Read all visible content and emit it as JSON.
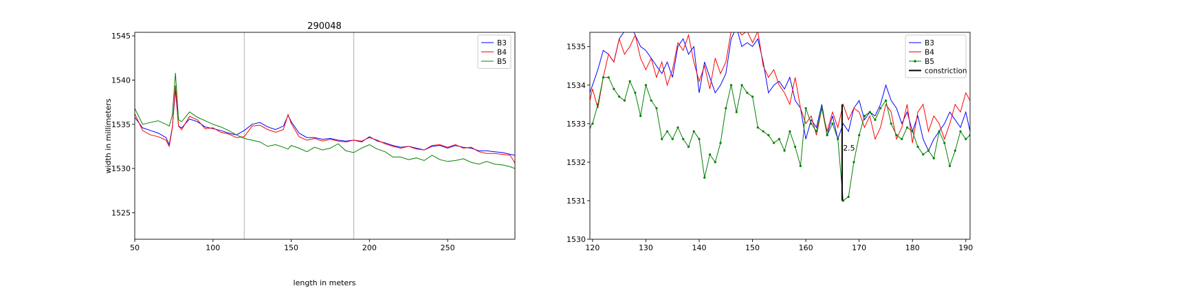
{
  "chart_data": [
    {
      "type": "line",
      "title": "290048",
      "xlabel": "length in meters",
      "ylabel": "width in millimeters",
      "xlim": [
        50,
        293
      ],
      "ylim": [
        1522,
        1545.4
      ],
      "xticks": [
        50,
        100,
        150,
        200,
        250
      ],
      "yticks": [
        1525,
        1530,
        1535,
        1540,
        1545
      ],
      "vlines": [
        120,
        190
      ],
      "grid": false,
      "legend_position": "top-right",
      "series": [
        {
          "name": "B3",
          "color": "#0000ff",
          "x": [
            50,
            55,
            60,
            65,
            70,
            72,
            74,
            76,
            78,
            80,
            85,
            90,
            95,
            100,
            105,
            110,
            115,
            120,
            125,
            130,
            135,
            140,
            145,
            148,
            150,
            155,
            160,
            165,
            170,
            175,
            180,
            185,
            190,
            195,
            200,
            205,
            210,
            215,
            220,
            225,
            230,
            235,
            240,
            245,
            250,
            255,
            260,
            265,
            270,
            275,
            280,
            285,
            290,
            293
          ],
          "y": [
            1535.8,
            1534.6,
            1534.3,
            1534.0,
            1533.5,
            1532.7,
            1534.6,
            1538.9,
            1534.8,
            1534.6,
            1535.6,
            1535.3,
            1534.7,
            1534.5,
            1534.3,
            1534.0,
            1533.8,
            1534.3,
            1535.0,
            1535.2,
            1534.7,
            1534.4,
            1534.8,
            1536.0,
            1535.3,
            1534.0,
            1533.5,
            1533.5,
            1533.3,
            1533.4,
            1533.2,
            1533.1,
            1533.2,
            1533.0,
            1533.6,
            1533.1,
            1532.9,
            1532.6,
            1532.4,
            1532.5,
            1532.3,
            1532.1,
            1532.5,
            1532.6,
            1532.3,
            1532.6,
            1532.4,
            1532.3,
            1532.0,
            1532.0,
            1531.9,
            1531.8,
            1531.6,
            1531.5
          ]
        },
        {
          "name": "B4",
          "color": "#ff0000",
          "x": [
            50,
            55,
            60,
            65,
            70,
            72,
            74,
            76,
            78,
            80,
            85,
            90,
            95,
            100,
            105,
            110,
            115,
            120,
            125,
            130,
            135,
            140,
            145,
            148,
            150,
            155,
            160,
            165,
            170,
            175,
            180,
            185,
            190,
            195,
            200,
            205,
            210,
            215,
            220,
            225,
            230,
            235,
            240,
            245,
            250,
            255,
            260,
            265,
            270,
            275,
            280,
            285,
            290,
            293
          ],
          "y": [
            1536.2,
            1534.3,
            1533.8,
            1533.6,
            1533.2,
            1532.5,
            1534.5,
            1539.4,
            1534.8,
            1534.4,
            1535.9,
            1535.5,
            1534.5,
            1534.6,
            1534.1,
            1533.9,
            1533.5,
            1533.6,
            1534.8,
            1534.9,
            1534.4,
            1534.1,
            1534.4,
            1536.1,
            1535.1,
            1533.6,
            1533.2,
            1533.4,
            1533.1,
            1533.3,
            1533.1,
            1533.0,
            1533.2,
            1533.1,
            1533.5,
            1533.2,
            1532.8,
            1532.5,
            1532.3,
            1532.5,
            1532.2,
            1532.1,
            1532.6,
            1532.7,
            1532.4,
            1532.7,
            1532.3,
            1532.4,
            1531.9,
            1531.7,
            1531.7,
            1531.6,
            1531.5,
            1530.6
          ]
        },
        {
          "name": "B5",
          "color": "#008000",
          "x": [
            50,
            55,
            60,
            65,
            70,
            72,
            74,
            76,
            78,
            80,
            85,
            90,
            95,
            100,
            105,
            110,
            115,
            120,
            125,
            130,
            135,
            140,
            145,
            148,
            150,
            155,
            160,
            165,
            170,
            175,
            180,
            185,
            190,
            195,
            200,
            205,
            210,
            215,
            220,
            225,
            230,
            235,
            240,
            245,
            250,
            255,
            260,
            265,
            270,
            275,
            280,
            285,
            290,
            293
          ],
          "y": [
            1536.8,
            1535.0,
            1535.2,
            1535.4,
            1535.0,
            1534.8,
            1536.0,
            1540.8,
            1535.5,
            1535.3,
            1536.4,
            1535.8,
            1535.4,
            1535.0,
            1534.7,
            1534.3,
            1533.8,
            1533.4,
            1533.2,
            1533.0,
            1532.5,
            1532.7,
            1532.4,
            1532.2,
            1532.6,
            1532.3,
            1531.9,
            1532.4,
            1532.1,
            1532.3,
            1532.8,
            1532.0,
            1531.8,
            1532.3,
            1532.7,
            1532.2,
            1531.9,
            1531.3,
            1531.3,
            1531.0,
            1531.2,
            1530.9,
            1531.5,
            1531.0,
            1530.8,
            1530.9,
            1531.1,
            1530.7,
            1530.5,
            1530.8,
            1530.5,
            1530.4,
            1530.2,
            1530.0
          ]
        }
      ]
    },
    {
      "type": "line",
      "title": "",
      "xlabel": "",
      "ylabel": "",
      "xlim": [
        119.5,
        190.8
      ],
      "ylim": [
        1530,
        1535.37
      ],
      "xticks": [
        120,
        130,
        140,
        150,
        160,
        170,
        180,
        190
      ],
      "yticks": [
        1530,
        1531,
        1532,
        1533,
        1534,
        1535
      ],
      "grid": false,
      "legend_position": "top-right",
      "series": [
        {
          "name": "B3",
          "color": "#0000ff",
          "x": [
            119.5,
            120,
            121,
            122,
            123,
            124,
            125,
            126,
            127,
            128,
            129,
            130,
            131,
            132,
            133,
            134,
            135,
            136,
            137,
            138,
            139,
            140,
            141,
            142,
            143,
            144,
            145,
            146,
            147,
            148,
            149,
            150,
            151,
            152,
            153,
            154,
            155,
            156,
            157,
            158,
            159,
            160,
            161,
            162,
            163,
            164,
            165,
            166,
            167,
            168,
            169,
            170,
            171,
            172,
            173,
            174,
            175,
            176,
            177,
            178,
            179,
            180,
            181,
            182,
            183,
            184,
            185,
            186,
            187,
            188,
            189,
            190,
            190.8
          ],
          "y": [
            1533.8,
            1534.0,
            1534.4,
            1534.9,
            1534.8,
            1534.6,
            1535.2,
            1535.4,
            1535.6,
            1535.3,
            1535.0,
            1534.9,
            1534.7,
            1534.5,
            1534.3,
            1534.6,
            1534.2,
            1535.0,
            1535.2,
            1534.8,
            1535.0,
            1533.8,
            1534.6,
            1534.2,
            1533.8,
            1534.0,
            1534.3,
            1535.2,
            1535.5,
            1535.0,
            1535.1,
            1535.0,
            1535.2,
            1534.6,
            1533.8,
            1534.0,
            1534.1,
            1533.9,
            1534.2,
            1533.6,
            1533.4,
            1532.6,
            1533.1,
            1532.9,
            1533.5,
            1532.7,
            1533.2,
            1532.6,
            1533.0,
            1532.8,
            1533.4,
            1533.6,
            1533.1,
            1533.3,
            1533.2,
            1533.5,
            1534.0,
            1533.6,
            1533.4,
            1533.0,
            1533.3,
            1532.8,
            1533.2,
            1532.6,
            1532.3,
            1532.6,
            1532.8,
            1533.0,
            1533.3,
            1533.1,
            1532.9,
            1533.3,
            1532.8
          ]
        },
        {
          "name": "B4",
          "color": "#ff0000",
          "x": [
            119.5,
            120,
            121,
            122,
            123,
            124,
            125,
            126,
            127,
            128,
            129,
            130,
            131,
            132,
            133,
            134,
            135,
            136,
            137,
            138,
            139,
            140,
            141,
            142,
            143,
            144,
            145,
            146,
            147,
            148,
            149,
            150,
            151,
            152,
            153,
            154,
            155,
            156,
            157,
            158,
            159,
            160,
            161,
            162,
            163,
            164,
            165,
            166,
            167,
            168,
            169,
            170,
            171,
            172,
            173,
            174,
            175,
            176,
            177,
            178,
            179,
            180,
            181,
            182,
            183,
            184,
            185,
            186,
            187,
            188,
            189,
            190,
            190.8
          ],
          "y": [
            1533.6,
            1533.9,
            1533.4,
            1534.2,
            1534.8,
            1534.6,
            1535.2,
            1534.8,
            1535.0,
            1535.3,
            1534.7,
            1534.4,
            1534.7,
            1534.2,
            1534.6,
            1534.0,
            1534.4,
            1535.1,
            1534.9,
            1535.3,
            1534.6,
            1534.1,
            1534.5,
            1533.9,
            1534.7,
            1534.3,
            1534.6,
            1535.4,
            1535.5,
            1535.3,
            1535.4,
            1535.1,
            1535.4,
            1534.5,
            1534.2,
            1534.4,
            1534.0,
            1533.8,
            1533.5,
            1534.2,
            1533.4,
            1533.0,
            1533.2,
            1532.7,
            1533.4,
            1532.8,
            1533.3,
            1532.9,
            1533.5,
            1533.1,
            1533.4,
            1533.3,
            1532.9,
            1533.2,
            1532.6,
            1532.9,
            1533.5,
            1533.3,
            1532.6,
            1532.9,
            1533.5,
            1532.5,
            1533.3,
            1533.5,
            1532.8,
            1533.2,
            1533.0,
            1532.6,
            1533.0,
            1533.5,
            1533.3,
            1533.8,
            1533.6
          ]
        },
        {
          "name": "B5",
          "color": "#008000",
          "markers": true,
          "x": [
            119.5,
            120,
            121,
            122,
            123,
            124,
            125,
            126,
            127,
            128,
            129,
            130,
            131,
            132,
            133,
            134,
            135,
            136,
            137,
            138,
            139,
            140,
            141,
            142,
            143,
            144,
            145,
            146,
            147,
            148,
            149,
            150,
            151,
            152,
            153,
            154,
            155,
            156,
            157,
            158,
            159,
            160,
            161,
            162,
            163,
            164,
            165,
            166,
            167,
            168,
            169,
            170,
            171,
            172,
            173,
            174,
            175,
            176,
            177,
            178,
            179,
            180,
            181,
            182,
            183,
            184,
            185,
            186,
            187,
            188,
            189,
            190,
            190.8
          ],
          "y": [
            1532.9,
            1533.0,
            1533.5,
            1534.2,
            1534.2,
            1533.9,
            1533.7,
            1533.6,
            1534.1,
            1533.8,
            1533.2,
            1534.0,
            1533.6,
            1533.4,
            1532.6,
            1532.8,
            1532.6,
            1532.9,
            1532.6,
            1532.4,
            1532.8,
            1532.6,
            1531.6,
            1532.2,
            1532.0,
            1532.5,
            1533.4,
            1534.0,
            1533.3,
            1534.0,
            1533.8,
            1533.7,
            1532.9,
            1532.8,
            1532.7,
            1532.5,
            1532.6,
            1532.3,
            1532.8,
            1532.4,
            1531.9,
            1533.4,
            1533.0,
            1532.8,
            1533.4,
            1532.7,
            1533.0,
            1532.6,
            1531.0,
            1531.1,
            1532.0,
            1532.7,
            1533.2,
            1533.3,
            1533.1,
            1533.4,
            1533.6,
            1533.0,
            1532.7,
            1532.6,
            1532.9,
            1532.8,
            1532.4,
            1532.2,
            1532.3,
            1532.1,
            1532.8,
            1532.5,
            1531.9,
            1532.3,
            1532.8,
            1532.6,
            1532.7
          ]
        },
        {
          "name": "constriction",
          "color": "#000000",
          "x": [
            166.8,
            166.8
          ],
          "y": [
            1533.5,
            1531.0
          ]
        }
      ],
      "annotations": [
        {
          "text": "2.5",
          "x": 168.1,
          "y": 1532.3
        }
      ]
    }
  ]
}
